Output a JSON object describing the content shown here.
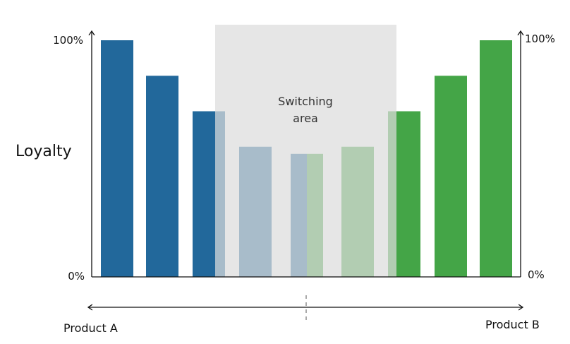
{
  "chart_data": {
    "type": "bar",
    "title": "",
    "ylabel": "Loyalty",
    "ylim": [
      0,
      100
    ],
    "y_tick_labels_left": [
      "0%",
      "100%"
    ],
    "y_tick_labels_right": [
      "0%",
      "100%"
    ],
    "grid": false,
    "legend": "none",
    "series": [
      {
        "values": [
          100,
          85,
          70,
          55,
          52,
          0,
          0,
          0,
          0,
          0
        ],
        "color": "#22689b"
      },
      {
        "values": [
          0,
          0,
          0,
          0,
          0,
          55,
          70,
          85,
          100,
          0
        ],
        "color": "#44a547"
      }
    ],
    "bars": [
      {
        "value": 100,
        "product": "A"
      },
      {
        "value": 85,
        "product": "A"
      },
      {
        "value": 70,
        "product": "A"
      },
      {
        "value": 55,
        "product": "A"
      },
      {
        "value": 52,
        "product": "A+B"
      },
      {
        "value": 55,
        "product": "B"
      },
      {
        "value": 70,
        "product": "B"
      },
      {
        "value": 85,
        "product": "B"
      },
      {
        "value": 100,
        "product": "B"
      }
    ],
    "annotations": [
      {
        "text_line1": "Switching",
        "text_line2": "area",
        "type": "shaded-region"
      }
    ],
    "x_axis_labels": {
      "left": "Product A",
      "right": "Product B"
    }
  },
  "colors": {
    "product_a": "#22689b",
    "product_b": "#44a547",
    "switching_area": "#dcdcdc"
  }
}
